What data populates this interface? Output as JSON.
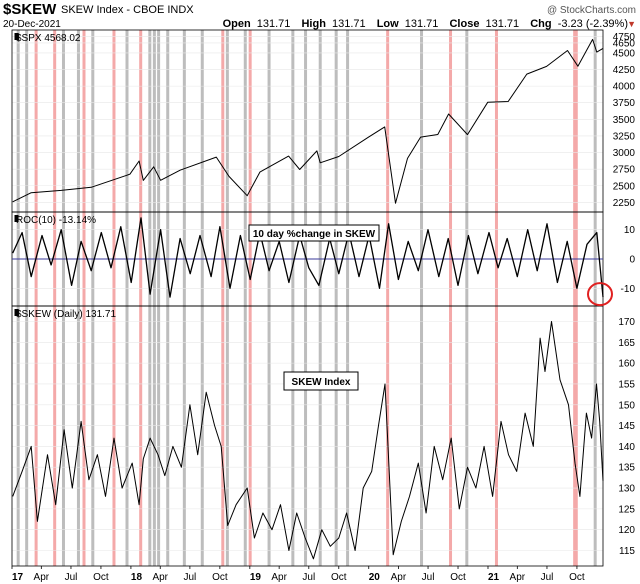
{
  "header": {
    "symbol": "$SKEW",
    "name": "SKEW Index - CBOE INDX",
    "date": "20-Dec-2021",
    "quote": {
      "open_label": "Open",
      "open": "131.71",
      "high_label": "High",
      "high": "131.71",
      "low_label": "Low",
      "low": "131.71",
      "close_label": "Close",
      "close": "131.71",
      "chg_label": "Chg",
      "chg": "-3.23 (-2.39%)",
      "chg_arrow": "▼"
    },
    "watermark": "@ StockCharts.com"
  },
  "colors": {
    "price_line": "#000000",
    "zero_line": "#3a3a9a",
    "red_band": "#f4a9a9",
    "gray_band": "#bdbdbd",
    "circle": "#e02020",
    "grid": "#e8e8e8",
    "chg_down": "#c0392b"
  },
  "annotations": {
    "roc_box": "10 day %change in SKEW",
    "skew_box": "SKEW Index"
  },
  "chart_data": [
    {
      "type": "line",
      "panel": "spx",
      "label": "$SPX 4568.02",
      "x_range": [
        "2017-01-01",
        "2021-12-20"
      ],
      "ylim": [
        2150,
        4800
      ],
      "yticks": [
        2250,
        2500,
        2750,
        3000,
        3250,
        3500,
        3750,
        4000,
        4250,
        4500,
        4650,
        4750
      ],
      "series": [
        {
          "x": [
            "2017-01-03",
            "2017-03-01",
            "2017-06-01",
            "2017-09-01",
            "2017-12-29",
            "2018-01-26",
            "2018-02-08",
            "2018-03-12",
            "2018-04-02",
            "2018-06-01",
            "2018-09-20",
            "2018-10-29",
            "2018-12-24",
            "2019-02-01",
            "2019-04-30",
            "2019-06-03",
            "2019-07-26",
            "2019-08-05",
            "2019-10-01",
            "2019-12-31",
            "2020-02-19",
            "2020-03-23",
            "2020-04-29",
            "2020-06-08",
            "2020-07-31",
            "2020-09-02",
            "2020-10-30",
            "2020-12-31",
            "2021-03-04",
            "2021-04-30",
            "2021-06-30",
            "2021-09-02",
            "2021-10-04",
            "2021-11-18",
            "2021-12-01",
            "2021-12-20"
          ],
          "values": [
            2258,
            2395,
            2430,
            2476,
            2674,
            2873,
            2581,
            2786,
            2582,
            2734,
            2931,
            2641,
            2351,
            2706,
            2946,
            2744,
            3025,
            2845,
            2940,
            3231,
            3386,
            2237,
            2912,
            3232,
            3271,
            3580,
            3270,
            3756,
            3768,
            4181,
            4297,
            4537,
            4300,
            4704,
            4513,
            4568
          ]
        }
      ]
    },
    {
      "type": "line",
      "panel": "roc",
      "label": "ROC(10) -13.14%",
      "ylim": [
        -15,
        15
      ],
      "yticks": [
        10,
        0,
        -10
      ],
      "series": [
        {
          "x": [
            "2017-01-03",
            "2017-02-01",
            "2017-03-01",
            "2017-04-03",
            "2017-05-01",
            "2017-06-01",
            "2017-07-03",
            "2017-08-01",
            "2017-09-01",
            "2017-10-02",
            "2017-11-01",
            "2017-12-01",
            "2018-01-02",
            "2018-02-01",
            "2018-03-01",
            "2018-04-02",
            "2018-05-01",
            "2018-06-01",
            "2018-07-02",
            "2018-08-01",
            "2018-09-04",
            "2018-10-01",
            "2018-11-01",
            "2018-12-03",
            "2019-01-02",
            "2019-02-01",
            "2019-03-01",
            "2019-04-01",
            "2019-05-01",
            "2019-06-03",
            "2019-07-01",
            "2019-08-01",
            "2019-09-03",
            "2019-10-01",
            "2019-11-01",
            "2019-12-02",
            "2020-01-02",
            "2020-02-03",
            "2020-03-02",
            "2020-04-01",
            "2020-05-01",
            "2020-06-01",
            "2020-07-01",
            "2020-08-03",
            "2020-09-01",
            "2020-10-01",
            "2020-11-02",
            "2020-12-01",
            "2021-01-04",
            "2021-02-01",
            "2021-03-01",
            "2021-04-01",
            "2021-05-03",
            "2021-06-01",
            "2021-07-01",
            "2021-08-02",
            "2021-09-01",
            "2021-10-01",
            "2021-11-01",
            "2021-12-01",
            "2021-12-20"
          ],
          "values": [
            2,
            9,
            -6,
            8,
            -2,
            10,
            -9,
            6,
            -4,
            9,
            -3,
            11,
            -8,
            14,
            -12,
            10,
            -13,
            7,
            -5,
            8,
            -6,
            11,
            -10,
            8,
            -7,
            9,
            -4,
            6,
            -8,
            8,
            -3,
            -9,
            7,
            -5,
            9,
            -6,
            8,
            -10,
            12,
            -7,
            6,
            -4,
            10,
            -6,
            7,
            -9,
            8,
            -5,
            9,
            -3,
            7,
            -6,
            10,
            -4,
            12,
            -8,
            6,
            -10,
            5,
            9,
            -13
          ]
        }
      ]
    },
    {
      "type": "line",
      "panel": "skew",
      "label": "$SKEW (Daily) 131.71",
      "ylim": [
        112,
        173
      ],
      "yticks": [
        115,
        120,
        125,
        130,
        135,
        140,
        145,
        150,
        155,
        160,
        165,
        170
      ],
      "series": [
        {
          "x": [
            "2017-01-03",
            "2017-02-01",
            "2017-03-01",
            "2017-03-20",
            "2017-04-20",
            "2017-05-15",
            "2017-06-10",
            "2017-07-05",
            "2017-08-01",
            "2017-08-25",
            "2017-09-20",
            "2017-10-15",
            "2017-11-10",
            "2017-12-05",
            "2018-01-05",
            "2018-01-26",
            "2018-02-08",
            "2018-03-01",
            "2018-03-25",
            "2018-04-15",
            "2018-05-10",
            "2018-06-05",
            "2018-07-01",
            "2018-07-25",
            "2018-08-20",
            "2018-09-15",
            "2018-10-05",
            "2018-10-25",
            "2018-11-20",
            "2018-12-24",
            "2019-01-15",
            "2019-02-10",
            "2019-03-10",
            "2019-04-05",
            "2019-05-01",
            "2019-05-25",
            "2019-06-20",
            "2019-07-15",
            "2019-08-10",
            "2019-09-05",
            "2019-10-01",
            "2019-10-25",
            "2019-11-20",
            "2019-12-15",
            "2020-01-10",
            "2020-01-31",
            "2020-02-20",
            "2020-03-16",
            "2020-04-10",
            "2020-05-05",
            "2020-06-01",
            "2020-06-25",
            "2020-07-20",
            "2020-08-15",
            "2020-09-10",
            "2020-10-05",
            "2020-10-30",
            "2020-11-25",
            "2020-12-20",
            "2021-01-15",
            "2021-02-10",
            "2021-03-05",
            "2021-03-30",
            "2021-04-25",
            "2021-05-20",
            "2021-06-10",
            "2021-06-25",
            "2021-07-15",
            "2021-08-10",
            "2021-09-05",
            "2021-09-25",
            "2021-10-10",
            "2021-10-30",
            "2021-11-15",
            "2021-11-30",
            "2021-12-10",
            "2021-12-20"
          ],
          "values": [
            128,
            134,
            140,
            122,
            138,
            126,
            144,
            130,
            146,
            132,
            138,
            128,
            142,
            130,
            136,
            126,
            137,
            142,
            138,
            133,
            140,
            135,
            150,
            138,
            153,
            145,
            140,
            121,
            126,
            130,
            118,
            124,
            120,
            126,
            115,
            124,
            118,
            113,
            120,
            116,
            118,
            124,
            115,
            130,
            134,
            145,
            155,
            114,
            122,
            128,
            136,
            124,
            140,
            132,
            142,
            125,
            135,
            130,
            140,
            128,
            146,
            138,
            134,
            148,
            140,
            166,
            158,
            170,
            156,
            150,
            136,
            128,
            148,
            142,
            155,
            146,
            131.71
          ]
        }
      ]
    }
  ],
  "x_axis": {
    "ticks": [
      {
        "label": "17",
        "date": "2017-01-01",
        "bold": true
      },
      {
        "label": "Apr",
        "date": "2017-04-01"
      },
      {
        "label": "Jul",
        "date": "2017-07-01"
      },
      {
        "label": "Oct",
        "date": "2017-10-01"
      },
      {
        "label": "18",
        "date": "2018-01-01",
        "bold": true
      },
      {
        "label": "Apr",
        "date": "2018-04-01"
      },
      {
        "label": "Jul",
        "date": "2018-07-01"
      },
      {
        "label": "Oct",
        "date": "2018-10-01"
      },
      {
        "label": "19",
        "date": "2019-01-01",
        "bold": true
      },
      {
        "label": "Apr",
        "date": "2019-04-01"
      },
      {
        "label": "Jul",
        "date": "2019-07-01"
      },
      {
        "label": "Oct",
        "date": "2019-10-01"
      },
      {
        "label": "20",
        "date": "2020-01-01",
        "bold": true
      },
      {
        "label": "Apr",
        "date": "2020-04-01"
      },
      {
        "label": "Jul",
        "date": "2020-07-01"
      },
      {
        "label": "Oct",
        "date": "2020-10-01"
      },
      {
        "label": "21",
        "date": "2021-01-01",
        "bold": true
      },
      {
        "label": "Apr",
        "date": "2021-04-01"
      },
      {
        "label": "Jul",
        "date": "2021-07-01"
      },
      {
        "label": "Oct",
        "date": "2021-10-01"
      }
    ]
  },
  "bands": {
    "red": [
      "2017-03-16",
      "2017-05-12",
      "2017-08-10",
      "2017-11-10",
      "2018-01-31",
      "2018-10-10",
      "2019-01-02",
      "2020-02-28",
      "2020-09-08",
      "2021-01-27",
      "2021-09-24",
      "2021-09-29"
    ],
    "gray": [
      "2017-01-20",
      "2017-02-15",
      "2017-06-08",
      "2017-07-24",
      "2017-09-06",
      "2017-12-20",
      "2018-02-28",
      "2018-03-14",
      "2018-03-27",
      "2018-04-24",
      "2018-06-14",
      "2018-08-08",
      "2018-10-24",
      "2018-12-18",
      "2019-03-01",
      "2019-05-13",
      "2019-06-21",
      "2019-08-05",
      "2019-09-23",
      "2019-10-28",
      "2020-06-11",
      "2020-10-28",
      "2021-11-26"
    ]
  }
}
